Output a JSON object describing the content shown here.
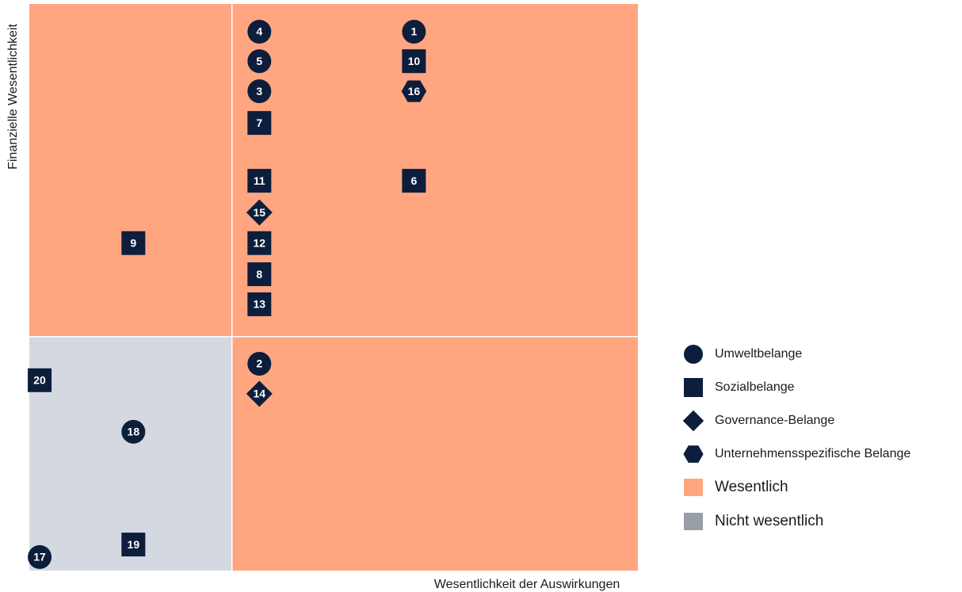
{
  "chart_data": {
    "type": "scatter",
    "x_label": "Wesentlichkeit der Auswirkungen",
    "y_label": "Finanzielle Wesentlichkeit",
    "xlim": [
      0,
      100
    ],
    "ylim": [
      0,
      100
    ],
    "thresholds": {
      "x": 33.3,
      "y": 41.3
    },
    "regions": [
      {
        "name": "Wesentlich",
        "color": "#ffa681",
        "legend_color": "#ffa681"
      },
      {
        "name": "Nicht wesentlich",
        "color": "#d4d9e1",
        "legend_color": "#989ea6"
      }
    ],
    "series": [
      {
        "name": "Umweltbelange",
        "marker": "circle",
        "color": "#0c1e3c",
        "labels": [
          "1",
          "4",
          "5",
          "3",
          "2",
          "18",
          "17"
        ],
        "x": [
          63.2,
          37.8,
          37.8,
          37.8,
          37.8,
          17.1,
          1.7
        ],
        "y": [
          95.1,
          95.1,
          89.9,
          84.6,
          36.5,
          24.5,
          2.4
        ]
      },
      {
        "name": "Sozialbelange",
        "marker": "square",
        "color": "#0c1e3c",
        "labels": [
          "10",
          "7",
          "11",
          "6",
          "9",
          "12",
          "8",
          "13",
          "20",
          "19"
        ],
        "x": [
          63.2,
          37.8,
          37.8,
          63.2,
          17.1,
          37.8,
          37.8,
          37.8,
          1.7,
          17.1
        ],
        "y": [
          89.9,
          79.0,
          68.8,
          68.8,
          57.8,
          57.8,
          52.3,
          47.0,
          33.6,
          4.6
        ]
      },
      {
        "name": "Governance-Belange",
        "marker": "diamond",
        "color": "#0c1e3c",
        "labels": [
          "15",
          "14"
        ],
        "x": [
          37.8,
          37.8
        ],
        "y": [
          63.2,
          31.2
        ]
      },
      {
        "name": "Unternehmensspezifische Belange",
        "marker": "hexagon",
        "color": "#0c1e3c",
        "labels": [
          "16"
        ],
        "x": [
          63.2
        ],
        "y": [
          84.6
        ]
      }
    ]
  }
}
